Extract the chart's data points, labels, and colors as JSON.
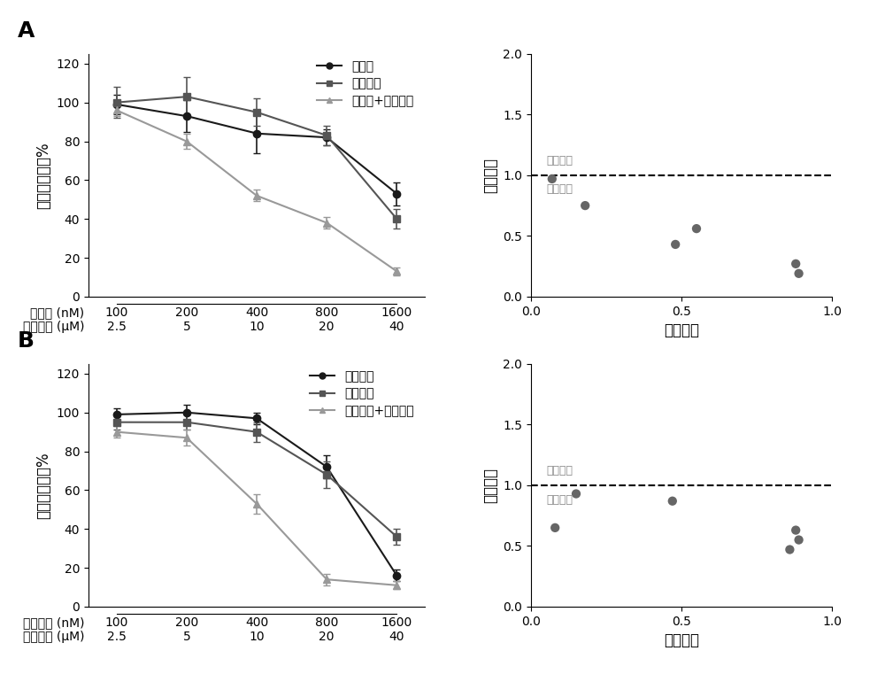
{
  "panel_A": {
    "x": [
      1,
      2,
      3,
      4,
      5
    ],
    "line1_y": [
      99,
      93,
      84,
      82,
      53
    ],
    "line1_err": [
      5,
      8,
      10,
      4,
      6
    ],
    "line2_y": [
      100,
      103,
      95,
      83,
      40
    ],
    "line2_err": [
      8,
      10,
      7,
      5,
      5
    ],
    "line3_y": [
      96,
      80,
      52,
      38,
      13
    ],
    "line3_err": [
      3,
      4,
      3,
      3,
      2
    ],
    "legend": [
      "阿霍素",
      "阿瑞匹坦",
      "阿霍素+阿瑞匹坦"
    ],
    "ylabel": "细胞增殖活力%",
    "xlabel1": "阿霍素 (nM)",
    "xlabel2": "阿瑞匹坦 (μM)",
    "xvals1": [
      "100",
      "200",
      "400",
      "800",
      "1600"
    ],
    "xvals2": [
      "2.5",
      "5",
      "10",
      "20",
      "40"
    ],
    "ylim": [
      0,
      125
    ],
    "yticks": [
      0,
      20,
      40,
      60,
      80,
      100,
      120
    ]
  },
  "panel_A_ci": {
    "x": [
      0.07,
      0.18,
      0.48,
      0.55,
      0.88,
      0.89
    ],
    "y": [
      0.97,
      0.75,
      0.43,
      0.56,
      0.27,
      0.19
    ],
    "xlabel": "抑制效应",
    "ylabel": "联合指数",
    "label_antagonism": "拮抗作用",
    "label_synergy": "协同作用",
    "xlim": [
      0,
      1.0
    ],
    "ylim": [
      0,
      2.0
    ],
    "yticks": [
      0.0,
      0.5,
      1.0,
      1.5,
      2.0
    ],
    "xticks": [
      0.0,
      0.5,
      1.0
    ]
  },
  "panel_B": {
    "x": [
      1,
      2,
      3,
      4,
      5
    ],
    "line1_y": [
      99,
      100,
      97,
      72,
      16
    ],
    "line1_err": [
      3,
      4,
      3,
      6,
      3
    ],
    "line2_y": [
      95,
      95,
      90,
      68,
      36
    ],
    "line2_err": [
      4,
      4,
      5,
      7,
      4
    ],
    "line3_y": [
      90,
      87,
      53,
      14,
      11
    ],
    "line3_err": [
      3,
      4,
      5,
      3,
      2
    ],
    "legend": [
      "柔红霍素",
      "阿瑞匹坦",
      "柔红霍素+阿瑞匹坦"
    ],
    "ylabel": "细胞增殖活力%",
    "xlabel1": "柔红霍素 (nM)",
    "xlabel2": "阿瑞匹坦 (μM)",
    "xvals1": [
      "100",
      "200",
      "400",
      "800",
      "1600"
    ],
    "xvals2": [
      "2.5",
      "5",
      "10",
      "20",
      "40"
    ],
    "ylim": [
      0,
      125
    ],
    "yticks": [
      0,
      20,
      40,
      60,
      80,
      100,
      120
    ]
  },
  "panel_B_ci": {
    "x": [
      0.08,
      0.15,
      0.47,
      0.86,
      0.88,
      0.89
    ],
    "y": [
      0.65,
      0.93,
      0.87,
      0.47,
      0.63,
      0.55
    ],
    "xlabel": "抑制效应",
    "ylabel": "联合指数",
    "label_antagonism": "拮抗作用",
    "label_synergy": "协同作用",
    "xlim": [
      0,
      1.0
    ],
    "ylim": [
      0,
      2.0
    ],
    "yticks": [
      0.0,
      0.5,
      1.0,
      1.5,
      2.0
    ],
    "xticks": [
      0.0,
      0.5,
      1.0
    ]
  },
  "colors": {
    "black": "#1a1a1a",
    "dark_gray": "#555555",
    "light_gray": "#999999"
  },
  "font_size": 11,
  "tick_font_size": 10,
  "label_font_size": 12
}
